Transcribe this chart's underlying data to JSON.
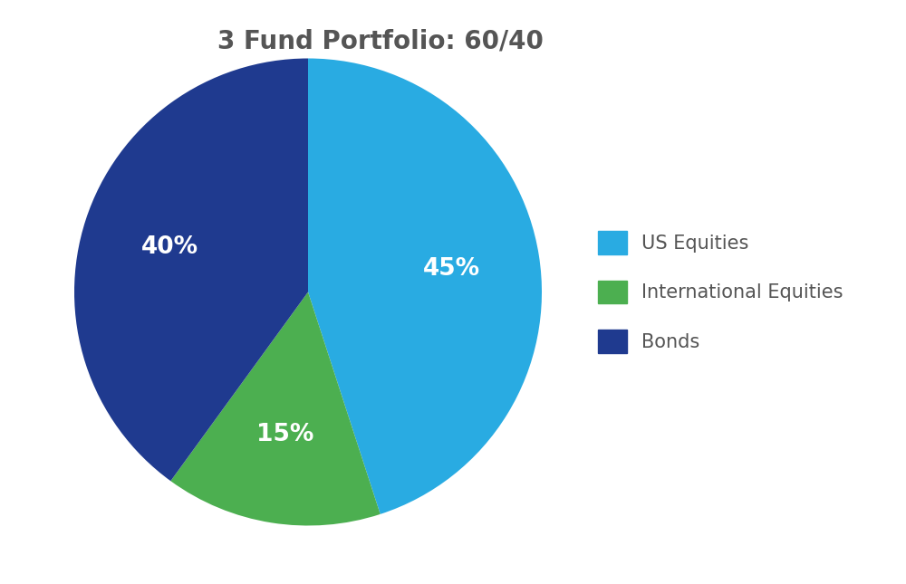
{
  "title": "3 Fund Portfolio: 60/40",
  "slices": [
    45,
    15,
    40
  ],
  "labels": [
    "US Equities",
    "International Equities",
    "Bonds"
  ],
  "colors": [
    "#29ABE2",
    "#4CAF50",
    "#1F3A8F"
  ],
  "text_labels": [
    "45%",
    "15%",
    "40%"
  ],
  "text_color": "#FFFFFF",
  "title_fontsize": 20,
  "title_color": "#555555",
  "legend_fontsize": 15,
  "autopct_fontsize": 19,
  "background_color": "#FFFFFF",
  "startangle": 90,
  "pctdistance": 0.62
}
